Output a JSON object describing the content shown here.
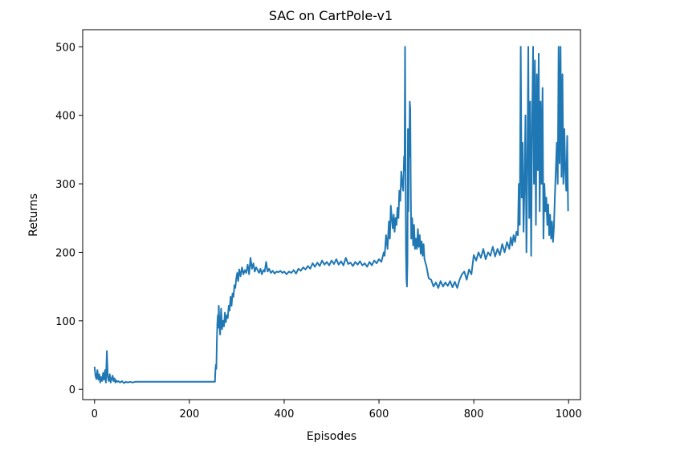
{
  "chart_data": {
    "type": "line",
    "title": "SAC on CartPole-v1",
    "xlabel": "Episodes",
    "ylabel": "Returns",
    "xlim": [
      -25,
      1025
    ],
    "ylim": [
      -15,
      525
    ],
    "xticks": [
      0,
      200,
      400,
      600,
      800,
      1000
    ],
    "yticks": [
      0,
      100,
      200,
      300,
      400,
      500
    ],
    "grid": false,
    "line_color": "#1f77b4",
    "series": [
      {
        "points": [
          [
            0,
            33
          ],
          [
            2,
            20
          ],
          [
            4,
            15
          ],
          [
            6,
            28
          ],
          [
            8,
            14
          ],
          [
            10,
            22
          ],
          [
            12,
            10
          ],
          [
            14,
            18
          ],
          [
            16,
            12
          ],
          [
            18,
            24
          ],
          [
            20,
            14
          ],
          [
            22,
            28
          ],
          [
            24,
            10
          ],
          [
            26,
            56
          ],
          [
            28,
            18
          ],
          [
            30,
            12
          ],
          [
            32,
            22
          ],
          [
            34,
            10
          ],
          [
            36,
            15
          ],
          [
            38,
            20
          ],
          [
            40,
            12
          ],
          [
            42,
            16
          ],
          [
            44,
            10
          ],
          [
            46,
            13
          ],
          [
            48,
            11
          ],
          [
            50,
            12
          ],
          [
            54,
            10
          ],
          [
            58,
            12
          ],
          [
            62,
            9
          ],
          [
            66,
            11
          ],
          [
            70,
            10
          ],
          [
            75,
            11
          ],
          [
            80,
            10
          ],
          [
            86,
            11
          ],
          [
            90,
            11
          ],
          [
            120,
            11
          ],
          [
            160,
            11
          ],
          [
            200,
            11
          ],
          [
            240,
            11
          ],
          [
            254,
            11
          ],
          [
            255,
            28
          ],
          [
            256,
            36
          ],
          [
            257,
            30
          ],
          [
            258,
            70
          ],
          [
            259,
            95
          ],
          [
            260,
            108
          ],
          [
            261,
            90
          ],
          [
            262,
            122
          ],
          [
            263,
            100
          ],
          [
            265,
            80
          ],
          [
            267,
            118
          ],
          [
            269,
            88
          ],
          [
            271,
            100
          ],
          [
            273,
            92
          ],
          [
            275,
            112
          ],
          [
            277,
            98
          ],
          [
            279,
            108
          ],
          [
            281,
            104
          ],
          [
            283,
            122
          ],
          [
            285,
            115
          ],
          [
            287,
            135
          ],
          [
            289,
            122
          ],
          [
            291,
            140
          ],
          [
            293,
            135
          ],
          [
            295,
            152
          ],
          [
            297,
            148
          ],
          [
            299,
            162
          ],
          [
            301,
            170
          ],
          [
            303,
            158
          ],
          [
            305,
            175
          ],
          [
            308,
            165
          ],
          [
            311,
            178
          ],
          [
            314,
            168
          ],
          [
            317,
            174
          ],
          [
            320,
            170
          ],
          [
            323,
            182
          ],
          [
            326,
            168
          ],
          [
            329,
            192
          ],
          [
            332,
            176
          ],
          [
            335,
            184
          ],
          [
            338,
            172
          ],
          [
            341,
            178
          ],
          [
            344,
            174
          ],
          [
            347,
            170
          ],
          [
            350,
            176
          ],
          [
            353,
            168
          ],
          [
            356,
            174
          ],
          [
            359,
            172
          ],
          [
            362,
            186
          ],
          [
            365,
            172
          ],
          [
            368,
            176
          ],
          [
            372,
            170
          ],
          [
            376,
            173
          ],
          [
            380,
            169
          ],
          [
            384,
            172
          ],
          [
            388,
            171
          ],
          [
            392,
            173
          ],
          [
            396,
            170
          ],
          [
            400,
            172
          ],
          [
            405,
            168
          ],
          [
            410,
            172
          ],
          [
            415,
            170
          ],
          [
            420,
            174
          ],
          [
            425,
            169
          ],
          [
            430,
            176
          ],
          [
            435,
            173
          ],
          [
            440,
            178
          ],
          [
            445,
            175
          ],
          [
            450,
            180
          ],
          [
            455,
            176
          ],
          [
            460,
            184
          ],
          [
            465,
            179
          ],
          [
            470,
            185
          ],
          [
            475,
            180
          ],
          [
            480,
            188
          ],
          [
            485,
            182
          ],
          [
            490,
            186
          ],
          [
            495,
            181
          ],
          [
            500,
            188
          ],
          [
            505,
            183
          ],
          [
            510,
            190
          ],
          [
            515,
            182
          ],
          [
            520,
            187
          ],
          [
            525,
            181
          ],
          [
            530,
            192
          ],
          [
            535,
            183
          ],
          [
            540,
            185
          ],
          [
            545,
            180
          ],
          [
            550,
            186
          ],
          [
            555,
            182
          ],
          [
            560,
            187
          ],
          [
            565,
            181
          ],
          [
            570,
            184
          ],
          [
            575,
            179
          ],
          [
            580,
            186
          ],
          [
            585,
            181
          ],
          [
            590,
            188
          ],
          [
            595,
            184
          ],
          [
            600,
            190
          ],
          [
            605,
            186
          ],
          [
            610,
            200
          ],
          [
            612,
            195
          ],
          [
            615,
            225
          ],
          [
            618,
            205
          ],
          [
            621,
            245
          ],
          [
            623,
            220
          ],
          [
            625,
            268
          ],
          [
            627,
            250
          ],
          [
            629,
            235
          ],
          [
            631,
            255
          ],
          [
            633,
            230
          ],
          [
            635,
            250
          ],
          [
            637,
            240
          ],
          [
            639,
            265
          ],
          [
            641,
            250
          ],
          [
            643,
            290
          ],
          [
            645,
            275
          ],
          [
            647,
            318
          ],
          [
            649,
            300
          ],
          [
            651,
            290
          ],
          [
            653,
            340
          ],
          [
            654,
            320
          ],
          [
            655,
            500
          ],
          [
            656,
            330
          ],
          [
            657,
            200
          ],
          [
            658,
            160
          ],
          [
            659,
            150
          ],
          [
            660,
            185
          ],
          [
            661,
            380
          ],
          [
            662,
            260
          ],
          [
            663,
            360
          ],
          [
            664,
            340
          ],
          [
            665,
            420
          ],
          [
            666,
            410
          ],
          [
            667,
            300
          ],
          [
            668,
            220
          ],
          [
            670,
            250
          ],
          [
            672,
            210
          ],
          [
            674,
            240
          ],
          [
            676,
            205
          ],
          [
            678,
            220
          ],
          [
            680,
            205
          ],
          [
            682,
            234
          ],
          [
            684,
            208
          ],
          [
            686,
            225
          ],
          [
            688,
            198
          ],
          [
            690,
            216
          ],
          [
            692,
            195
          ],
          [
            694,
            212
          ],
          [
            696,
            190
          ],
          [
            700,
            180
          ],
          [
            705,
            162
          ],
          [
            710,
            160
          ],
          [
            715,
            150
          ],
          [
            720,
            156
          ],
          [
            725,
            148
          ],
          [
            730,
            158
          ],
          [
            735,
            150
          ],
          [
            740,
            156
          ],
          [
            745,
            151
          ],
          [
            750,
            158
          ],
          [
            755,
            149
          ],
          [
            760,
            157
          ],
          [
            765,
            148
          ],
          [
            770,
            160
          ],
          [
            775,
            168
          ],
          [
            780,
            172
          ],
          [
            785,
            160
          ],
          [
            790,
            175
          ],
          [
            795,
            168
          ],
          [
            800,
            196
          ],
          [
            805,
            188
          ],
          [
            810,
            200
          ],
          [
            815,
            192
          ],
          [
            820,
            205
          ],
          [
            825,
            190
          ],
          [
            830,
            200
          ],
          [
            835,
            195
          ],
          [
            840,
            208
          ],
          [
            845,
            194
          ],
          [
            850,
            205
          ],
          [
            855,
            196
          ],
          [
            860,
            212
          ],
          [
            865,
            200
          ],
          [
            870,
            215
          ],
          [
            875,
            205
          ],
          [
            878,
            222
          ],
          [
            881,
            210
          ],
          [
            884,
            225
          ],
          [
            887,
            215
          ],
          [
            890,
            230
          ],
          [
            893,
            225
          ],
          [
            895,
            300
          ],
          [
            897,
            240
          ],
          [
            899,
            500
          ],
          [
            901,
            280
          ],
          [
            903,
            360
          ],
          [
            905,
            230
          ],
          [
            907,
            300
          ],
          [
            909,
            400
          ],
          [
            911,
            200
          ],
          [
            913,
            330
          ],
          [
            915,
            500
          ],
          [
            917,
            250
          ],
          [
            919,
            420
          ],
          [
            921,
            195
          ],
          [
            923,
            390
          ],
          [
            925,
            500
          ],
          [
            927,
            300
          ],
          [
            929,
            480
          ],
          [
            931,
            240
          ],
          [
            933,
            460
          ],
          [
            935,
            320
          ],
          [
            937,
            490
          ],
          [
            939,
            260
          ],
          [
            941,
            420
          ],
          [
            943,
            300
          ],
          [
            945,
            440
          ],
          [
            947,
            220
          ],
          [
            949,
            300
          ],
          [
            951,
            260
          ],
          [
            953,
            280
          ],
          [
            955,
            240
          ],
          [
            957,
            270
          ],
          [
            959,
            225
          ],
          [
            961,
            255
          ],
          [
            963,
            220
          ],
          [
            965,
            245
          ],
          [
            967,
            215
          ],
          [
            969,
            235
          ],
          [
            971,
            280
          ],
          [
            973,
            320
          ],
          [
            975,
            360
          ],
          [
            977,
            300
          ],
          [
            979,
            500
          ],
          [
            981,
            330
          ],
          [
            983,
            500
          ],
          [
            985,
            310
          ],
          [
            987,
            460
          ],
          [
            989,
            300
          ],
          [
            991,
            380
          ],
          [
            993,
            320
          ],
          [
            995,
            290
          ],
          [
            997,
            370
          ],
          [
            999,
            260
          ]
        ]
      }
    ]
  }
}
